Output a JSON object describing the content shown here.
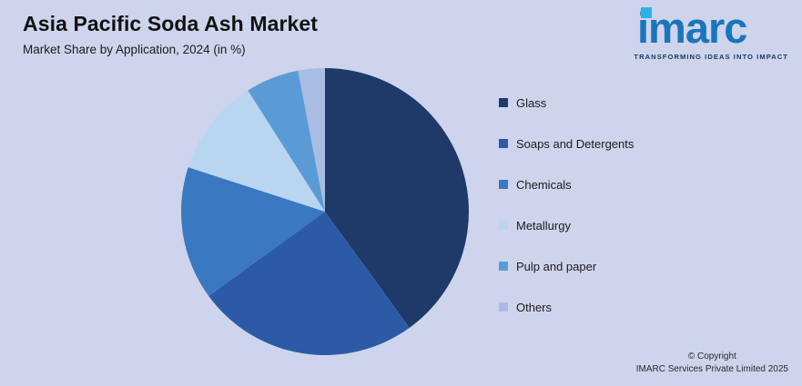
{
  "page": {
    "background": "#cdd4ec"
  },
  "header": {
    "title": "Asia Pacific Soda Ash Market",
    "subtitle": "Market Share by Application, 2024 (in %)"
  },
  "logo": {
    "text": "imarc",
    "tagline": "TRANSFORMING IDEAS INTO IMPACT",
    "brand_blue": "#1b75bc",
    "accent_cyan": "#2bb3e8"
  },
  "chart_data": {
    "type": "pie",
    "title": "Asia Pacific Soda Ash Market",
    "subtitle": "Market Share by Application, 2024 (in %)",
    "values_unit": "%",
    "start_angle_deg": 0,
    "direction": "clockwise",
    "legend_position": "right",
    "segments": [
      {
        "label": "Glass",
        "value": 40,
        "color": "#1f3a68"
      },
      {
        "label": "Soaps and Detergents",
        "value": 25,
        "color": "#2d5aa6"
      },
      {
        "label": "Chemicals",
        "value": 15,
        "color": "#3a78c2"
      },
      {
        "label": "Metallurgy",
        "value": 11,
        "color": "#b9d5f0"
      },
      {
        "label": "Pulp and paper",
        "value": 6,
        "color": "#5b9bd5"
      },
      {
        "label": "Others",
        "value": 3,
        "color": "#a9bce4"
      }
    ]
  },
  "footer": {
    "copyright_line1": "© Copyright",
    "copyright_line2": "IMARC Services Private Limited 2025"
  }
}
